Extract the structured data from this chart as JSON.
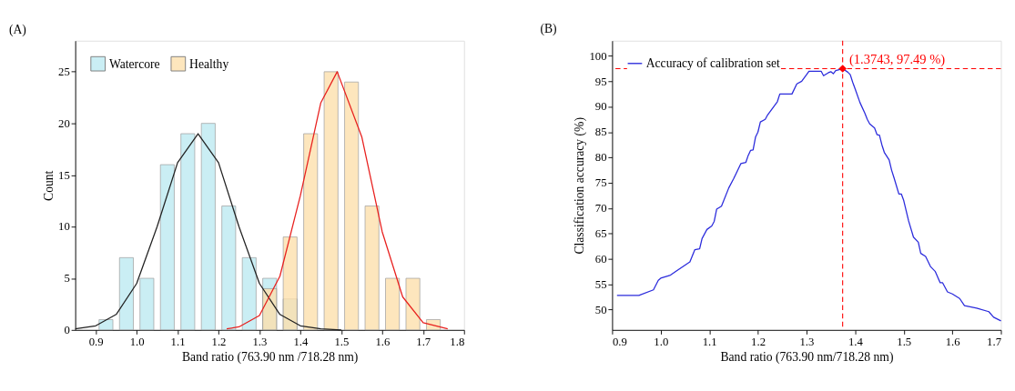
{
  "chart_data": [
    {
      "type": "histogram",
      "title": "(A)",
      "xlabel": "Band ratio (763.90 nm /718.28 nm)",
      "ylabel": "Count",
      "bins": [
        0.9,
        0.95,
        1.0,
        1.05,
        1.1,
        1.15,
        1.2,
        1.25,
        1.3,
        1.35,
        1.4,
        1.45,
        1.5,
        1.55,
        1.6,
        1.65,
        1.7,
        1.75
      ],
      "series": [
        {
          "name": "Watercore",
          "color": "#bdeaf2",
          "values": [
            1,
            7,
            5,
            16,
            19,
            20,
            12,
            7,
            5,
            3,
            null,
            null,
            null,
            null,
            null,
            null,
            null
          ]
        },
        {
          "name": "Healthy",
          "color": "#fde0ad",
          "values": [
            null,
            null,
            null,
            null,
            null,
            null,
            null,
            null,
            4,
            9,
            19,
            25,
            24,
            12,
            5,
            5,
            1
          ]
        },
        {
          "type": "line",
          "color": "#222222",
          "x": [
            0.85,
            0.9,
            0.95,
            1.0,
            1.05,
            1.1,
            1.15,
            1.2,
            1.25,
            1.3,
            1.35,
            1.4,
            1.45,
            1.5
          ],
          "values": [
            0.1,
            0.4,
            1.5,
            4.5,
            10,
            16.2,
            19,
            16.2,
            10,
            4.5,
            1.5,
            0.4,
            0.1,
            0
          ]
        },
        {
          "type": "line",
          "color": "#e8201e",
          "x": [
            1.22,
            1.25,
            1.3,
            1.35,
            1.4,
            1.45,
            1.49,
            1.55,
            1.6,
            1.65,
            1.7,
            1.76
          ],
          "values": [
            0.1,
            0.3,
            1.4,
            5.2,
            13,
            22,
            25,
            18.7,
            9.5,
            3.2,
            0.7,
            0.1
          ]
        }
      ],
      "xlim": [
        0.85,
        1.8
      ],
      "xticks": [
        0.9,
        {
          "value": 1.0,
          "label": "1.0"
        },
        1.1,
        1.2,
        1.3,
        1.4,
        1.5,
        1.6,
        1.7,
        1.8
      ],
      "ylim": [
        0,
        28
      ],
      "yticks": [
        0,
        5,
        10,
        15,
        20,
        25
      ],
      "legend": "top left"
    },
    {
      "type": "line",
      "title": "(B)",
      "xlabel": "Band ratio (763.90 nm/718.28 nm)",
      "ylabel": "Classification accuracy (%)",
      "series": [
        {
          "name": "Accuracy of calibration set",
          "color": "#2b2bdc",
          "x": [
            0.91,
            0.955,
            0.985,
            0.995,
            1.0,
            1.02,
            1.035,
            1.06,
            1.07,
            1.08,
            1.085,
            1.095,
            1.105,
            1.11,
            1.115,
            1.125,
            1.14,
            1.15,
            1.155,
            1.165,
            1.175,
            1.18,
            1.185,
            1.19,
            1.195,
            1.2,
            1.205,
            1.215,
            1.22,
            1.24,
            1.245,
            1.27,
            1.28,
            1.29,
            1.3,
            1.305,
            1.33,
            1.335,
            1.345,
            1.35,
            1.355,
            1.36,
            1.3743,
            1.385,
            1.39,
            1.395,
            1.4,
            1.41,
            1.42,
            1.425,
            1.43,
            1.44,
            1.445,
            1.45,
            1.455,
            1.46,
            1.47,
            1.475,
            1.48,
            1.49,
            1.495,
            1.5,
            1.51,
            1.52,
            1.53,
            1.535,
            1.545,
            1.555,
            1.565,
            1.575,
            1.58,
            1.59,
            1.6,
            1.615,
            1.625,
            1.65,
            1.675,
            1.685,
            1.7
          ],
          "values": [
            52.8,
            52.8,
            53.9,
            55.8,
            56.2,
            56.8,
            57.8,
            59.4,
            61.8,
            62,
            64,
            65.8,
            66.5,
            67.4,
            69.8,
            70.4,
            74,
            75.8,
            76.8,
            78.8,
            79,
            80.4,
            81.4,
            81.5,
            84,
            85,
            87,
            87.5,
            88.4,
            91,
            92.5,
            92.5,
            94.5,
            95,
            96.3,
            97,
            97,
            96.1,
            96.7,
            96.9,
            96.5,
            97.1,
            97.49,
            96.8,
            96.3,
            94.8,
            93.5,
            90.8,
            88.7,
            87.5,
            86.6,
            85.8,
            84.5,
            84.4,
            82.5,
            81,
            79.5,
            77.5,
            76,
            72.8,
            72.8,
            71.5,
            67.5,
            64.3,
            63.3,
            61.1,
            60.5,
            58.5,
            57.5,
            55.3,
            55.3,
            53.5,
            53.1,
            52.2,
            50.8,
            50.3,
            49.6,
            48.5,
            47.8
          ]
        },
        {
          "type": "scatter",
          "marker": "diamond",
          "color": "#ff0000",
          "x": [
            1.3743
          ],
          "values": [
            97.49
          ]
        }
      ],
      "ref_lines": [
        {
          "axis": "x",
          "value": 1.3743,
          "color": "#ff0000",
          "line_style": "dashed"
        },
        {
          "axis": "y",
          "value": 97.49,
          "color": "#ff0000",
          "line_style": "dashed"
        }
      ],
      "annotations": [
        {
          "text": "(1.3743, 97.49 %)",
          "x": 1.3743,
          "y": 97.49
        }
      ],
      "xlim": [
        0.9,
        1.7
      ],
      "xticks": [
        0.9,
        {
          "value": 1.0,
          "label": "1.0"
        },
        1.1,
        1.2,
        1.3,
        1.4,
        1.5,
        1.6,
        1.7
      ],
      "ylim": [
        46,
        103
      ],
      "yticks": [
        50,
        55,
        60,
        65,
        70,
        75,
        80,
        85,
        90,
        95,
        100
      ],
      "legend": "top left"
    }
  ]
}
